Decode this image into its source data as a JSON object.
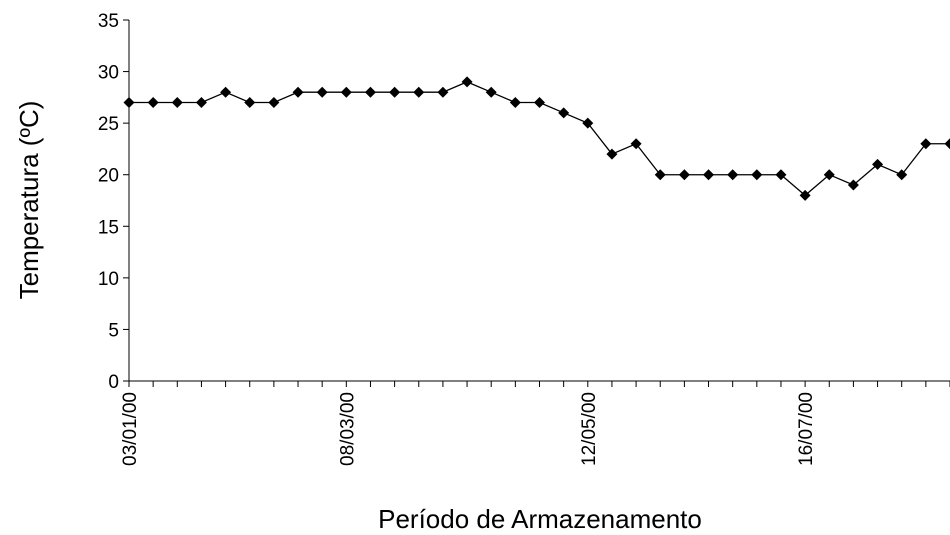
{
  "chart_data": {
    "type": "line",
    "y_label": "Temperatura (ºC)",
    "x_label": "Período de Armazenamento",
    "categories": [
      "03/01/00",
      null,
      null,
      null,
      null,
      null,
      null,
      null,
      null,
      "08/03/00",
      null,
      null,
      null,
      null,
      null,
      null,
      null,
      null,
      null,
      "12/05/00",
      null,
      null,
      null,
      null,
      null,
      null,
      null,
      null,
      "16/07/00",
      null,
      null,
      null,
      null,
      null,
      null
    ],
    "series": [
      {
        "name": "Temperatura",
        "color": "#000000",
        "values": [
          27,
          27,
          27,
          27,
          28,
          27,
          27,
          28,
          28,
          28,
          28,
          28,
          28,
          28,
          29,
          28,
          27,
          27,
          26,
          25,
          22,
          23,
          20,
          20,
          20,
          20,
          20,
          20,
          18,
          20,
          19,
          21,
          20,
          23,
          23
        ]
      }
    ],
    "ylim": [
      0,
      35
    ],
    "yticks": [
      0,
      5,
      10,
      15,
      20,
      25,
      30,
      35
    ],
    "grid": false
  }
}
